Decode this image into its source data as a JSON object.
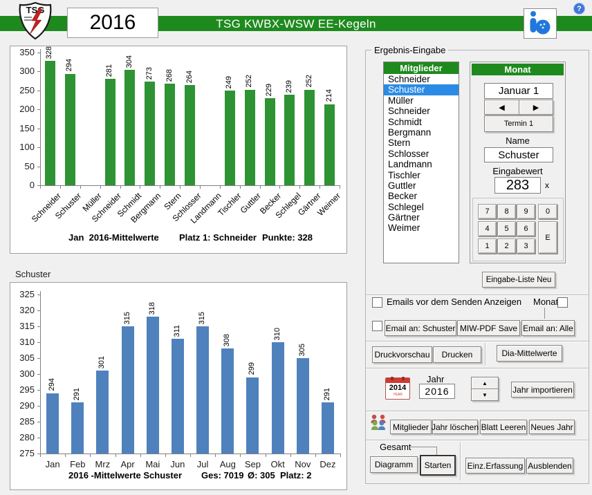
{
  "header": {
    "logo_text": "TSG",
    "year": "2016",
    "title": "TSG KWBX-WSW EE-Kegeln",
    "help": "?"
  },
  "colors": {
    "header_green": "#1e8a1e",
    "bar_green": "#2e9333",
    "bar_blue": "#4f81bd",
    "selection_blue": "#2b8be4"
  },
  "chart_data": [
    {
      "type": "bar",
      "title": "",
      "categories": [
        "Schneider",
        "Schuster",
        "Müller",
        "Schneider",
        "Schmidt",
        "Bergmann",
        "Stern",
        "Schlosser",
        "Landmann",
        "Tischler",
        "Guttler",
        "Becker",
        "Schlegel",
        "Gärtner",
        "Weimer"
      ],
      "values": [
        328,
        294,
        null,
        281,
        304,
        273,
        268,
        264,
        null,
        249,
        252,
        229,
        239,
        252,
        214
      ],
      "ylim": [
        0,
        350
      ],
      "ytick_step": 50,
      "bar_color": "#2e9333",
      "grid": false,
      "legend": "none",
      "caption": [
        "Jan  2016-Mittelwerte",
        "Platz 1: Schneider",
        "Punkte: 328"
      ]
    },
    {
      "type": "bar",
      "title": "Schuster",
      "categories": [
        "Jan",
        "Feb",
        "Mrz",
        "Apr",
        "Mai",
        "Jun",
        "Jul",
        "Aug",
        "Sep",
        "Okt",
        "Nov",
        "Dez"
      ],
      "values": [
        294,
        291,
        301,
        315,
        318,
        311,
        315,
        308,
        299,
        310,
        305,
        291
      ],
      "ylim": [
        275,
        325
      ],
      "ytick_step": 5,
      "bar_color": "#4f81bd",
      "grid": false,
      "legend": "none",
      "caption": [
        "2016 -Mittelwerte Schuster",
        "Ges: 7019",
        "Ø: 305  Platz: 2"
      ]
    }
  ],
  "panel": {
    "group_label": "Ergebnis-Eingabe",
    "members": {
      "header": "Mitglieder",
      "items": [
        "Schneider",
        "Schuster",
        "Müller",
        "Schneider",
        "Schmidt",
        "Bergmann",
        "Stern",
        "Schlosser",
        "Landmann",
        "Tischler",
        "Guttler",
        "Becker",
        "Schlegel",
        "Gärtner",
        "Weimer"
      ],
      "selected_index": 1
    },
    "monat": {
      "header": "Monat",
      "date_value": "Januar 1",
      "prev": "◀",
      "next": "▶",
      "termin": "Termin 1",
      "name_label": "Name",
      "name_value": "Schuster",
      "value_label": "Eingabewert",
      "value": "283",
      "value_suffix": "x",
      "keypad": [
        "7",
        "8",
        "9",
        "0",
        "4",
        "5",
        "6",
        "1",
        "2",
        "3"
      ],
      "enter_key": "E"
    },
    "eingabe_liste_btn": "Eingabe-Liste Neu",
    "email": {
      "show_before_send": "Emails vor dem Senden Anzeigen",
      "monat_label": "Monat",
      "btn_schuster": "Email an: Schuster",
      "btn_pdf": "MIW-PDF Save",
      "btn_alle": "Email an: Alle"
    },
    "print": {
      "preview": "Druckvorschau",
      "print": "Drucken",
      "dia": "Dia-Mittelwerte"
    },
    "year": {
      "label": "Jahr",
      "value": "2016",
      "calendar_year": "2014",
      "calendar_sub": "YEAR",
      "spin_up": "▲",
      "spin_down": "▼",
      "import_btn": "Jahr importieren"
    },
    "admin": {
      "mitglieder": "Mitglieder",
      "jahr_loeschen": "Jahr löschen",
      "blatt_leeren": "Blatt Leeren",
      "neues_jahr": "Neues Jahr"
    },
    "gesamt": {
      "label": "Gesamt",
      "diagramm": "Diagramm",
      "starten": "Starten",
      "einz": "Einz.Erfassung",
      "ausblenden": "Ausblenden"
    }
  }
}
